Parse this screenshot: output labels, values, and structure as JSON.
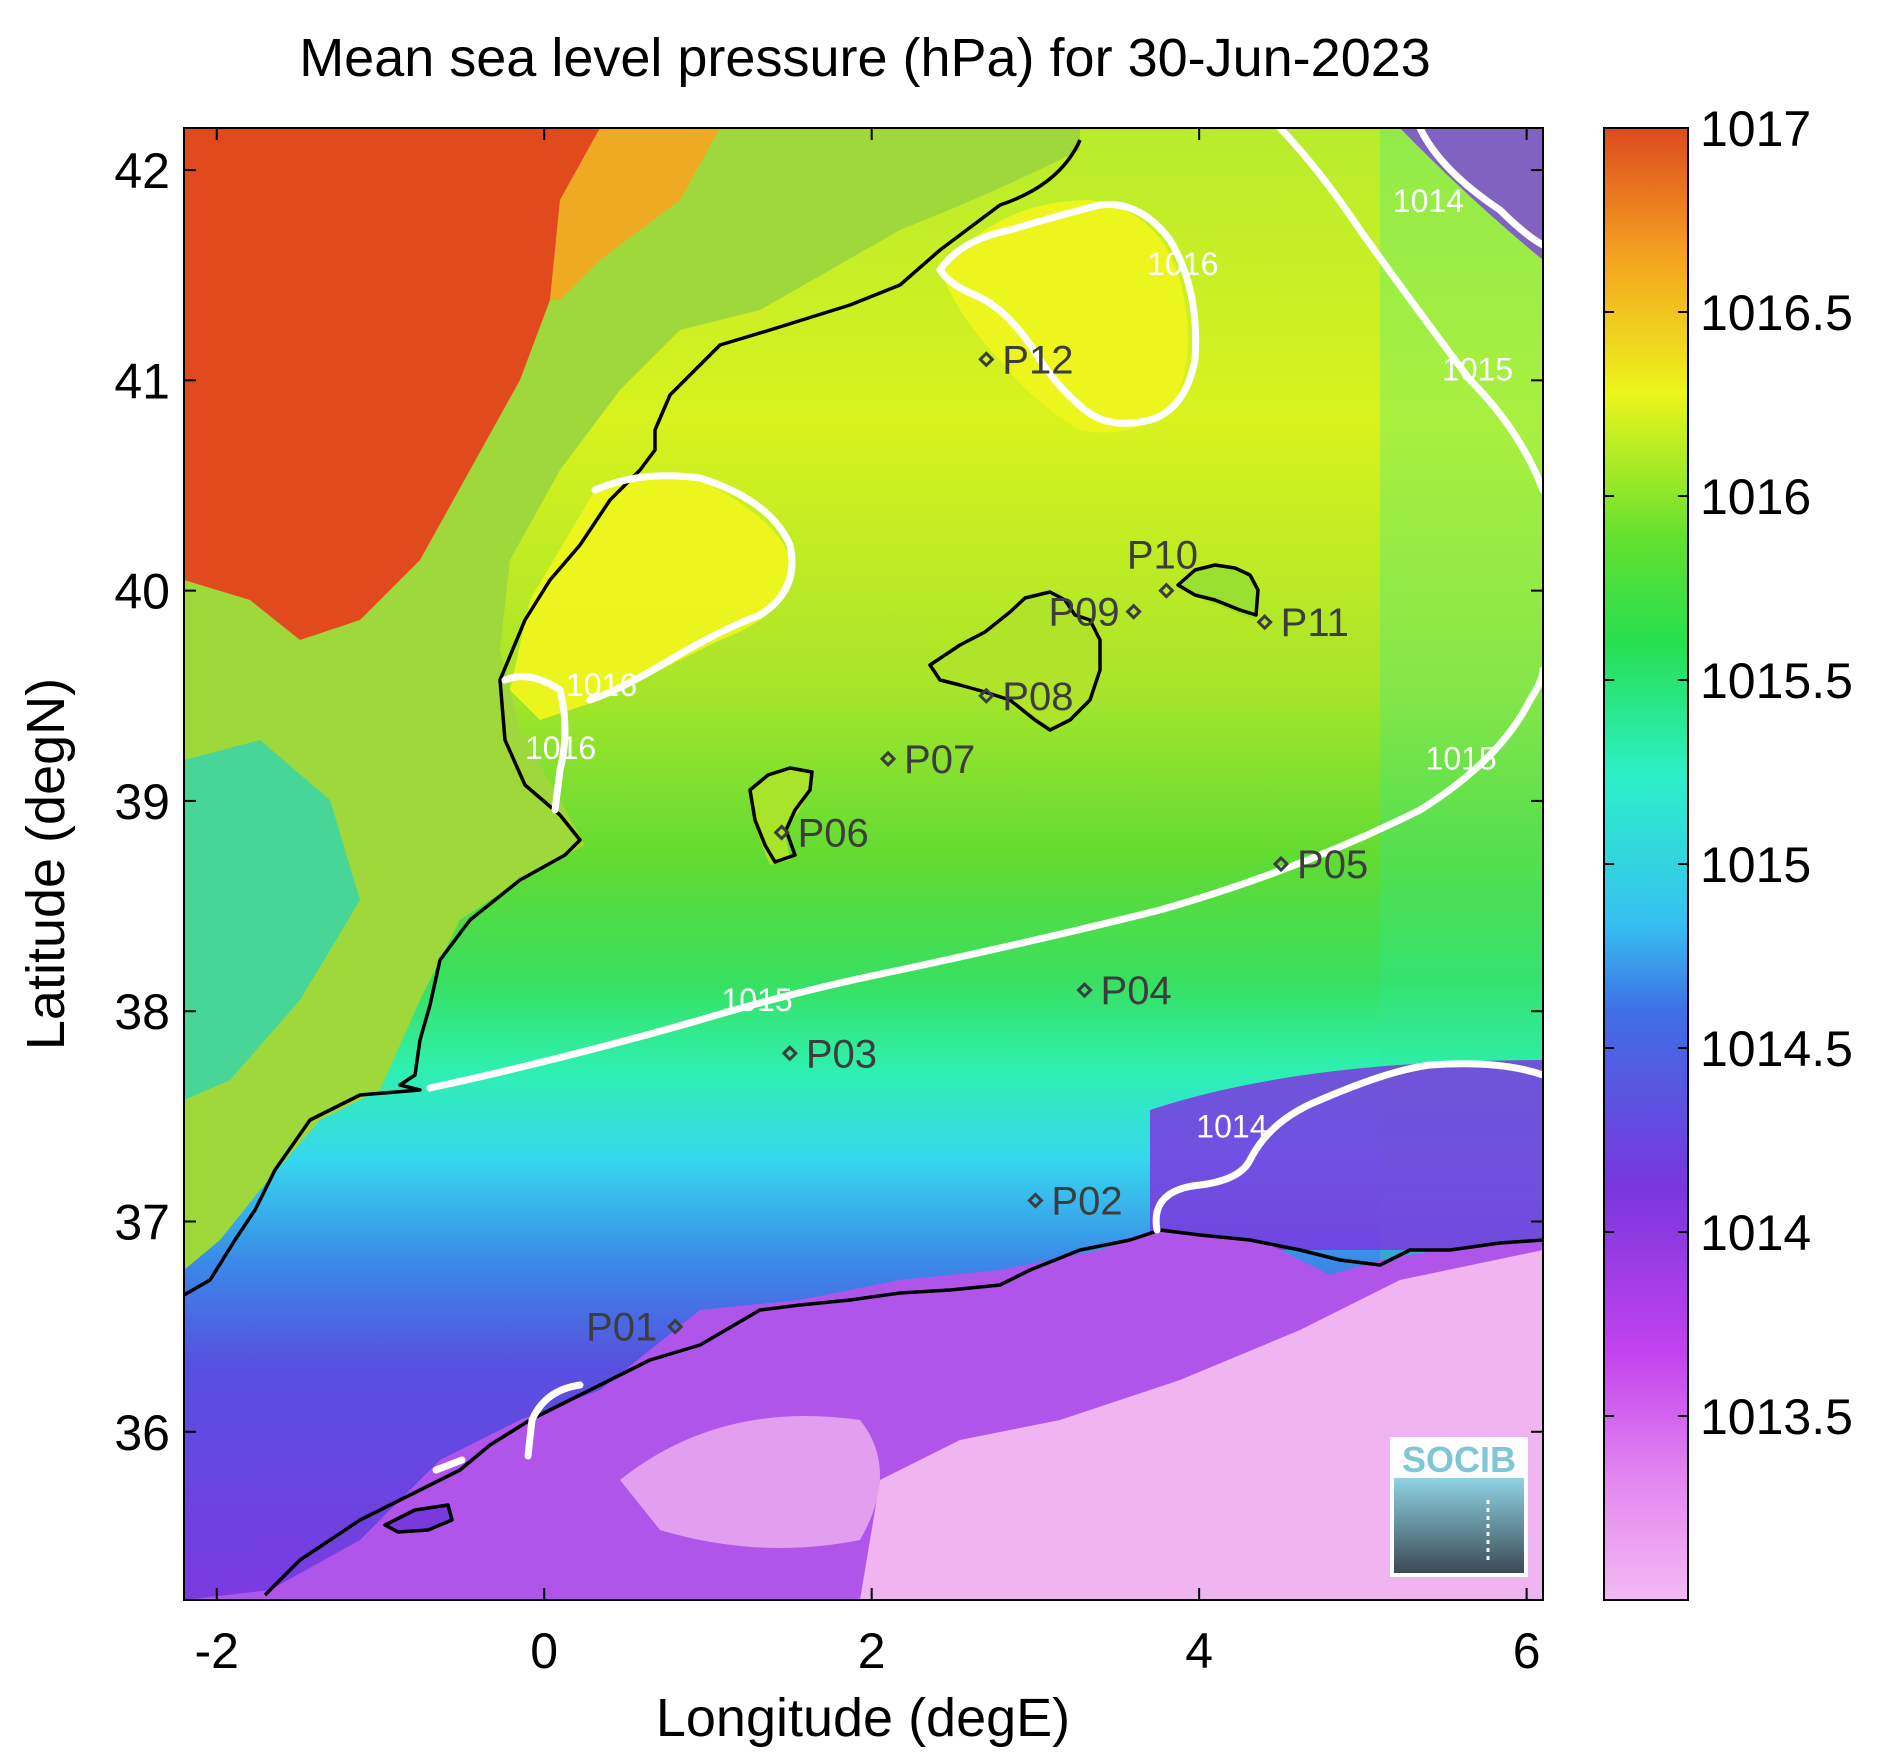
{
  "figure": {
    "title": "Mean sea level pressure (hPa) for 30-Jun-2023",
    "xlabel": "Longitude (degE)",
    "ylabel": "Latitude (degN)",
    "logo_text": "SOCIB"
  },
  "map": {
    "lon_range": [
      -2.2,
      6.1
    ],
    "lat_range": [
      35.2,
      42.2
    ],
    "x_ticks": [
      -2,
      0,
      2,
      4,
      6
    ],
    "x_tick_labels": [
      "-2",
      "0",
      "2",
      "4",
      "6"
    ],
    "y_ticks": [
      36,
      37,
      38,
      39,
      40,
      41,
      42
    ],
    "y_tick_labels": [
      "36",
      "37",
      "38",
      "39",
      "40",
      "41",
      "42"
    ],
    "land_color_north": "#e04a1d",
    "land_color_south": "#f0b4f0"
  },
  "colorbar": {
    "range": [
      1013.0,
      1017.0
    ],
    "ticks": [
      1013.5,
      1014,
      1014.5,
      1015,
      1015.5,
      1016,
      1016.5,
      1017
    ],
    "tick_labels": [
      "1013.5",
      "1014",
      "1014.5",
      "1015",
      "1015.5",
      "1016",
      "1016.5",
      "1017"
    ],
    "colormap": [
      "#f3b9f3",
      "#cc44ee",
      "#7733dd",
      "#3fa0ee",
      "#2cf0c8",
      "#27d832",
      "#e6f51c",
      "#f5a020",
      "#dd4a1f"
    ]
  },
  "contour_labels": [
    {
      "text": "1014",
      "lon": 5.4,
      "lat": 41.8
    },
    {
      "text": "1014",
      "lon": 4.2,
      "lat": 37.4
    },
    {
      "text": "1015",
      "lon": 5.7,
      "lat": 41.0
    },
    {
      "text": "1015",
      "lon": 5.6,
      "lat": 39.15
    },
    {
      "text": "1015",
      "lon": 1.3,
      "lat": 38.0
    },
    {
      "text": "1016",
      "lon": 3.9,
      "lat": 41.5
    },
    {
      "text": "1016",
      "lon": 0.35,
      "lat": 39.5
    },
    {
      "text": "1016",
      "lon": 0.1,
      "lat": 39.2
    }
  ],
  "points": [
    {
      "name": "P01",
      "lon": 0.8,
      "lat": 36.5,
      "anchor": "end"
    },
    {
      "name": "P02",
      "lon": 3.0,
      "lat": 37.1,
      "anchor": "start"
    },
    {
      "name": "P03",
      "lon": 1.5,
      "lat": 37.8,
      "anchor": "start"
    },
    {
      "name": "P04",
      "lon": 3.3,
      "lat": 38.1,
      "anchor": "start"
    },
    {
      "name": "P05",
      "lon": 4.5,
      "lat": 38.7,
      "anchor": "start"
    },
    {
      "name": "P06",
      "lon": 1.45,
      "lat": 38.85,
      "anchor": "start"
    },
    {
      "name": "P07",
      "lon": 2.1,
      "lat": 39.2,
      "anchor": "start"
    },
    {
      "name": "P08",
      "lon": 2.7,
      "lat": 39.5,
      "anchor": "start"
    },
    {
      "name": "P09",
      "lon": 3.6,
      "lat": 39.9,
      "anchor": "endlow"
    },
    {
      "name": "P10",
      "lon": 3.8,
      "lat": 40.0,
      "anchor": "above"
    },
    {
      "name": "P11",
      "lon": 4.4,
      "lat": 39.85,
      "anchor": "start"
    },
    {
      "name": "P12",
      "lon": 2.7,
      "lat": 41.1,
      "anchor": "start"
    }
  ]
}
